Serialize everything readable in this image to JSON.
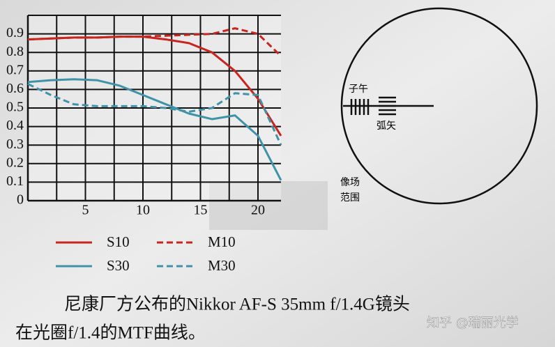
{
  "chart_data": {
    "type": "line",
    "x": [
      0,
      2,
      4,
      6,
      8,
      10,
      12,
      14,
      16,
      18,
      20,
      22
    ],
    "series": [
      {
        "name": "S10",
        "color": "#c8251f",
        "style": "solid",
        "values": [
          0.87,
          0.875,
          0.88,
          0.88,
          0.885,
          0.885,
          0.87,
          0.85,
          0.8,
          0.7,
          0.55,
          0.35
        ]
      },
      {
        "name": "M10",
        "color": "#c8251f",
        "style": "dashed",
        "values": [
          0.87,
          0.875,
          0.88,
          0.88,
          0.885,
          0.885,
          0.89,
          0.895,
          0.9,
          0.93,
          0.9,
          0.78
        ]
      },
      {
        "name": "S30",
        "color": "#3f93a8",
        "style": "solid",
        "values": [
          0.64,
          0.65,
          0.655,
          0.65,
          0.62,
          0.57,
          0.52,
          0.47,
          0.44,
          0.46,
          0.35,
          0.11
        ]
      },
      {
        "name": "M30",
        "color": "#3f93a8",
        "style": "dashed",
        "values": [
          0.63,
          0.57,
          0.52,
          0.51,
          0.51,
          0.51,
          0.5,
          0.48,
          0.5,
          0.58,
          0.57,
          0.3
        ]
      }
    ],
    "xlim": [
      0,
      22
    ],
    "ylim": [
      0,
      1
    ],
    "xticks": [
      5,
      10,
      15,
      20
    ],
    "xminor": [
      2.5,
      7.5,
      12.5,
      17.5
    ],
    "yticks": [
      0,
      0.1,
      0.2,
      0.3,
      0.4,
      0.5,
      0.6,
      0.7,
      0.8,
      0.9
    ],
    "grid": true
  },
  "diagram": {
    "meridional": "子午",
    "sagittal": "弧矢",
    "field_line1": "像场",
    "field_line2": "范围"
  },
  "caption": {
    "line1": "尼康厂方公布的Nikkor AF-S 35mm f/1.4G镜头",
    "line2": "在光圈f/1.4的MTF曲线。"
  },
  "watermark": "知乎 @瑞丽光学"
}
